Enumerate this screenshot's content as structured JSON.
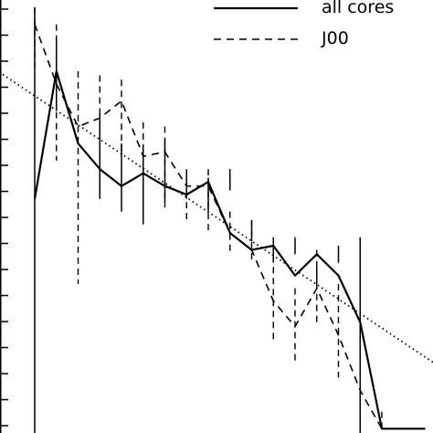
{
  "chart_data": {
    "type": "line",
    "x": [
      0.5,
      1.0,
      1.5,
      2.0,
      2.5,
      3.0,
      3.5,
      4.0,
      4.5,
      5.0,
      5.5,
      6.0,
      6.5,
      7.0,
      7.5,
      8.0,
      8.5,
      9.0
    ],
    "xlim": [
      0.0,
      10.0
    ],
    "ylim": [
      0.0,
      10.0
    ],
    "grid": false,
    "legend_position": "top-right",
    "series": [
      {
        "name": "all cores",
        "style": "solid",
        "x": [
          0.0,
          0.5,
          1.0,
          1.5,
          2.0,
          2.5,
          3.0,
          3.5,
          4.0,
          4.5,
          5.0,
          5.5,
          6.0,
          6.5,
          7.0,
          7.5,
          8.0,
          8.5,
          9.0
        ],
        "y": [
          5.5,
          8.5,
          6.8,
          6.2,
          5.8,
          6.1,
          5.8,
          5.6,
          5.9,
          4.7,
          4.3,
          4.4,
          3.7,
          4.2,
          3.7,
          2.6,
          0.1,
          0.1,
          0.1
        ],
        "err_x": [
          0.0,
          0.5,
          1.5,
          2.0,
          2.5,
          3.0,
          3.5,
          4.0,
          4.5,
          5.0,
          5.5,
          6.0,
          6.5,
          7.0,
          7.5
        ],
        "err_y": [
          5.5,
          8.5,
          6.8,
          6.2,
          5.8,
          6.1,
          5.8,
          5.6,
          5.9,
          4.7,
          4.3,
          4.4,
          3.7,
          4.2,
          3.7
        ],
        "err_lo": [
          0.0,
          7.6,
          5.5,
          5.2,
          4.9,
          5.4,
          5.5,
          5.2,
          5.7,
          4.5,
          4.0,
          4.2,
          3.5,
          4.0,
          0.0
        ],
        "err_hi": [
          10.0,
          9.2,
          7.5,
          6.8,
          6.7,
          6.9,
          6.1,
          6.0,
          6.2,
          5.0,
          4.6,
          4.6,
          3.9,
          4.4,
          4.6
        ]
      },
      {
        "name": "J00",
        "style": "dashed",
        "x": [
          0.0,
          0.5,
          1.0,
          1.5,
          2.0,
          2.5,
          3.0,
          3.5,
          4.0,
          4.5,
          5.0,
          5.5,
          6.0,
          6.5,
          7.0,
          7.5,
          8.0
        ],
        "y": [
          9.6,
          8.2,
          7.2,
          7.4,
          7.8,
          6.5,
          6.6,
          5.8,
          5.8,
          4.7,
          4.3,
          3.1,
          2.5,
          3.4,
          2.3,
          1.0,
          0.1
        ],
        "err_lo": [
          8.6,
          6.4,
          3.5,
          6.4,
          6.6,
          5.5,
          5.3,
          5.0,
          4.7,
          4.2,
          4.0,
          2.2,
          1.6,
          2.6,
          1.3,
          0.5,
          0.0
        ],
        "err_hi": [
          10.0,
          9.6,
          8.5,
          8.4,
          8.3,
          7.3,
          7.2,
          6.2,
          6.2,
          5.2,
          5.0,
          3.9,
          3.4,
          4.3,
          3.5,
          1.6,
          0.5
        ]
      },
      {
        "name": "",
        "style": "dotted",
        "x": [
          -1.0,
          10.0
        ],
        "y": [
          8.6,
          1.1
        ]
      }
    ]
  }
}
